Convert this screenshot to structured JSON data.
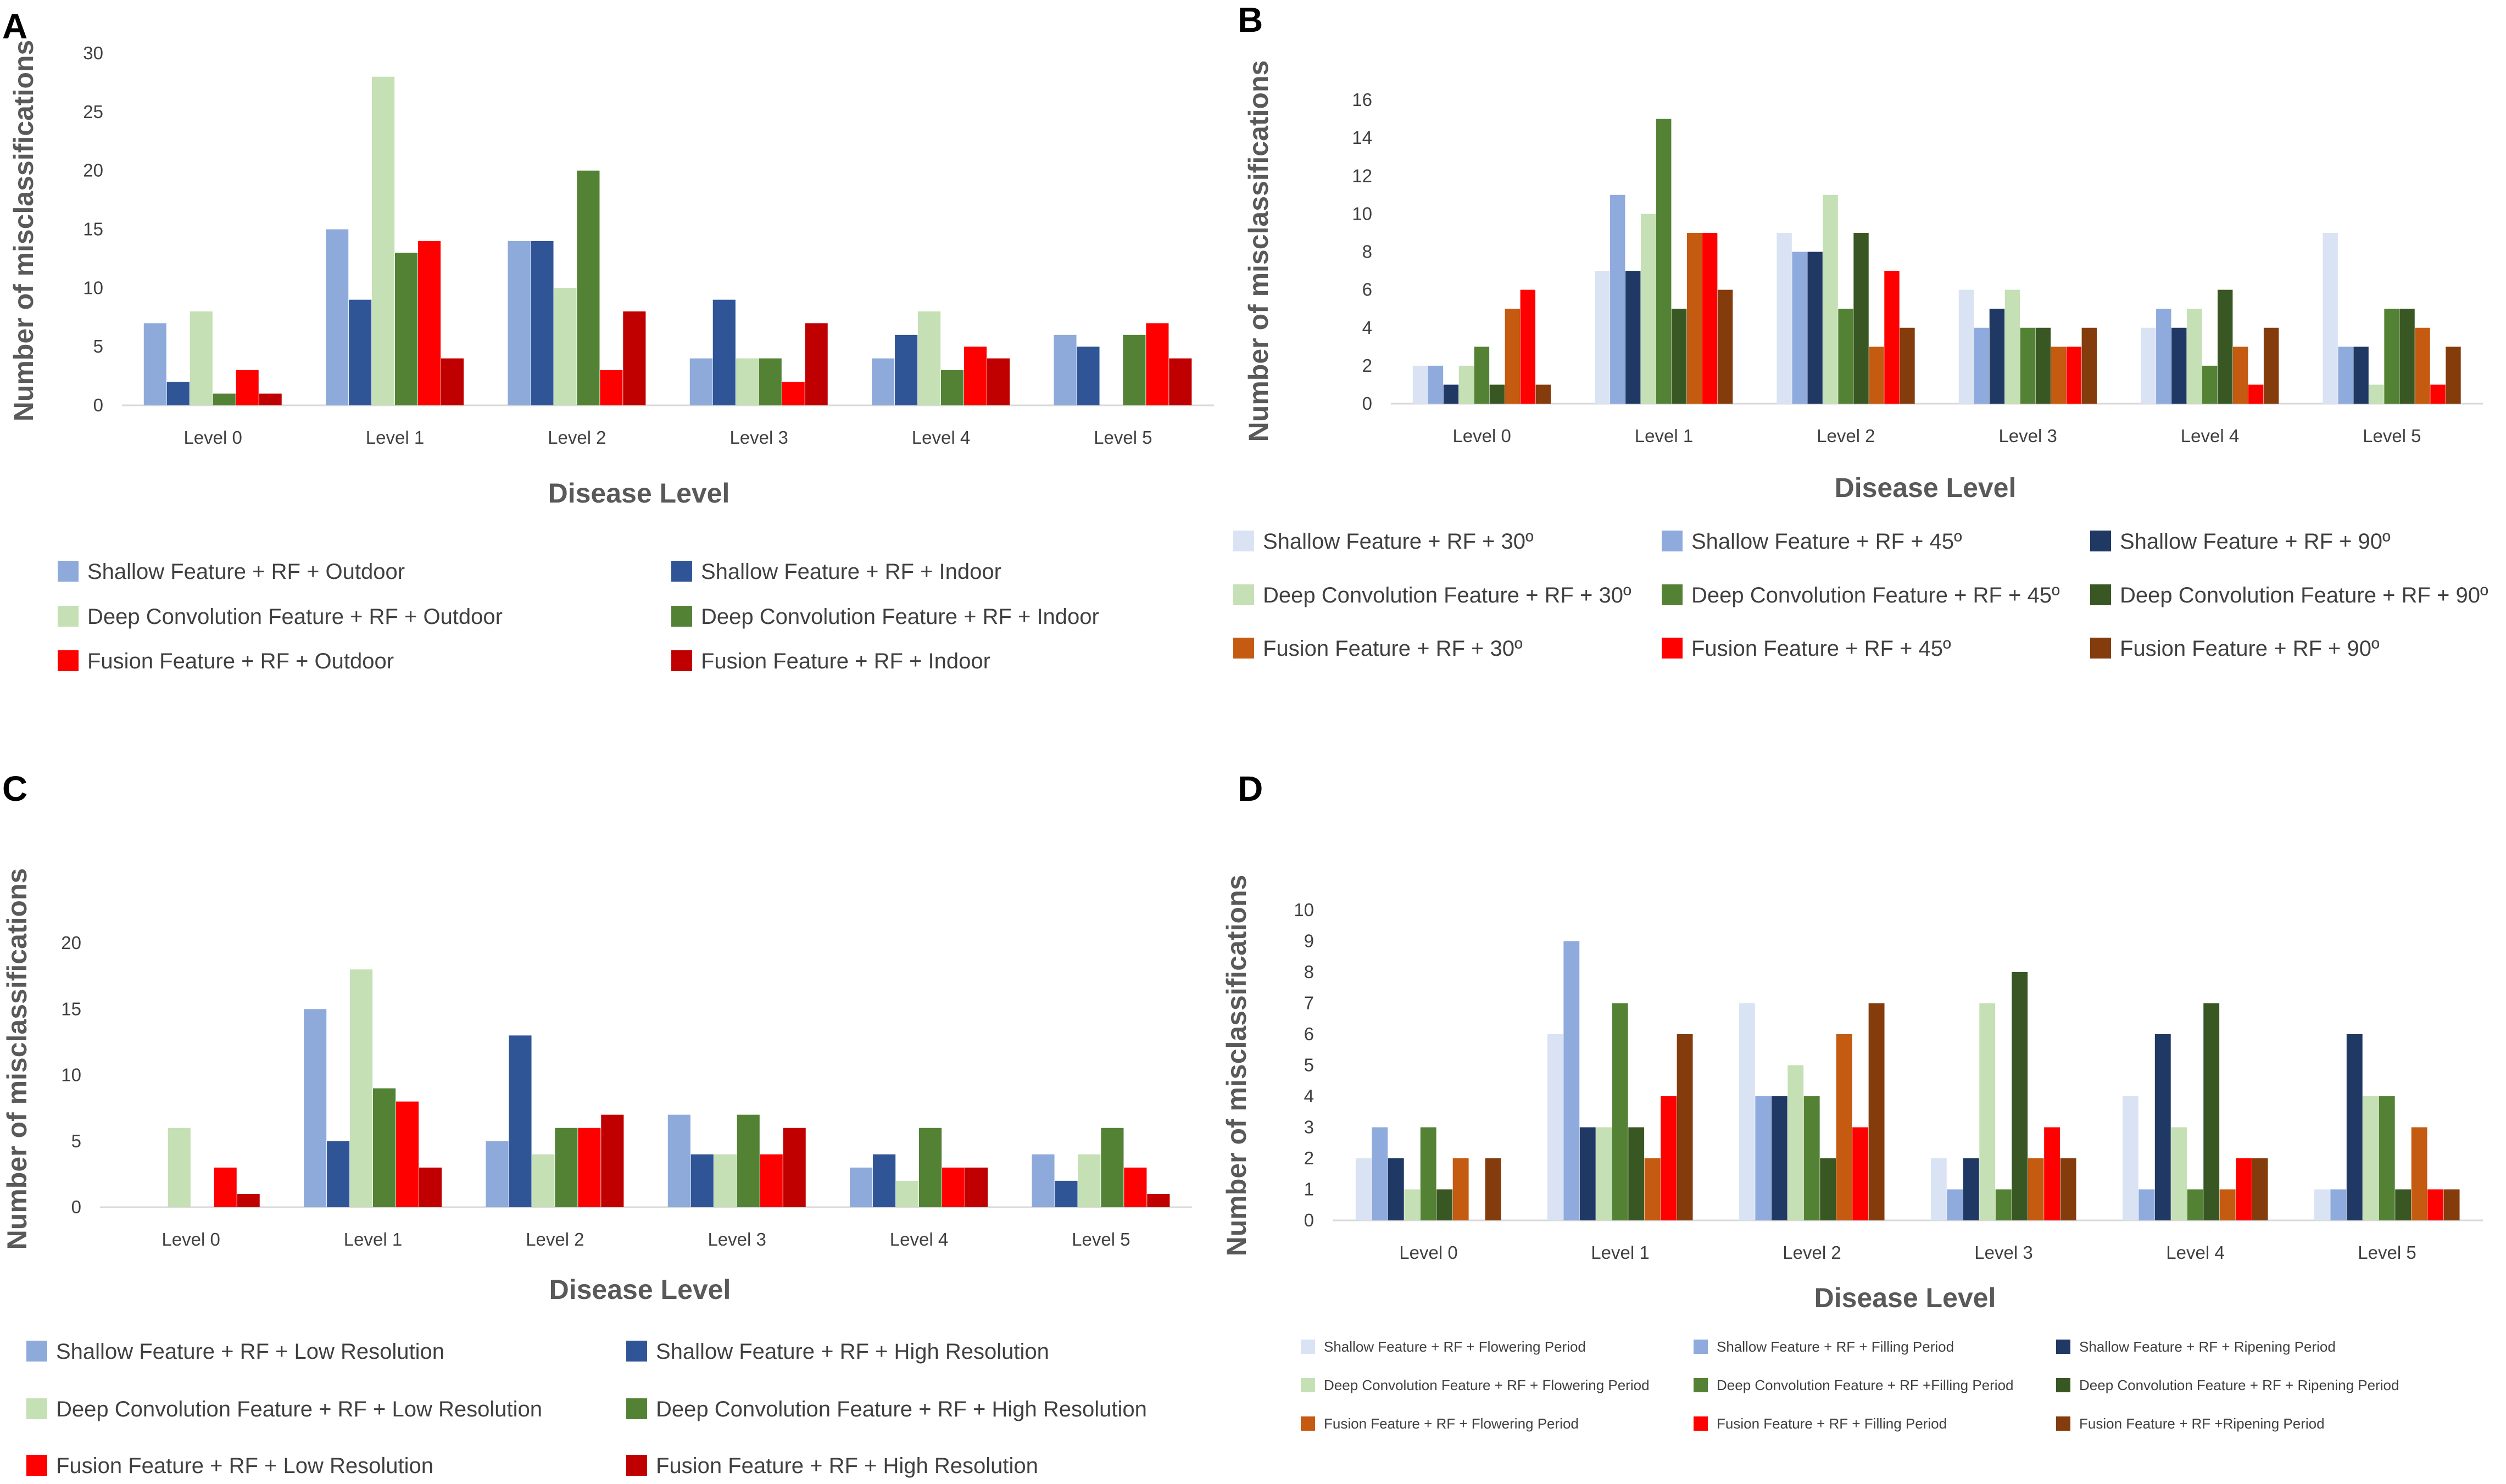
{
  "chart_data": [
    {
      "panel": "A",
      "type": "bar",
      "title": "",
      "xlabel": "Disease Level",
      "ylabel": "Number of misclassifications",
      "ylim": [
        0,
        30
      ],
      "yticks": [
        0,
        5,
        10,
        15,
        20,
        25,
        30
      ],
      "grid": false,
      "legend": "bottom",
      "categories": [
        "Level 0",
        "Level 1",
        "Level 2",
        "Level 3",
        "Level 4",
        "Level 5"
      ],
      "series": [
        {
          "name": "Shallow Feature + RF + Outdoor",
          "color": "#8eaadb",
          "values": [
            7,
            15,
            14,
            4,
            4,
            6
          ]
        },
        {
          "name": "Shallow Feature + RF + Indoor",
          "color": "#2f5597",
          "values": [
            2,
            9,
            14,
            9,
            6,
            5
          ]
        },
        {
          "name": "Deep Convolution Feature + RF + Outdoor",
          "color": "#c5e0b4",
          "values": [
            8,
            28,
            10,
            4,
            8,
            0
          ]
        },
        {
          "name": "Deep Convolution Feature + RF + Indoor",
          "color": "#548235",
          "values": [
            1,
            13,
            20,
            4,
            3,
            6
          ]
        },
        {
          "name": "Fusion Feature + RF + Outdoor",
          "color": "#ff0000",
          "values": [
            3,
            14,
            3,
            2,
            5,
            7
          ]
        },
        {
          "name": "Fusion Feature + RF + Indoor",
          "color": "#c00000",
          "values": [
            1,
            4,
            8,
            7,
            4,
            4
          ]
        }
      ]
    },
    {
      "panel": "B",
      "type": "bar",
      "title": "",
      "xlabel": "Disease Level",
      "ylabel": "Number of misclassifications",
      "ylim": [
        0,
        16
      ],
      "yticks": [
        0,
        2,
        4,
        6,
        8,
        10,
        12,
        14,
        16
      ],
      "grid": false,
      "legend": "bottom",
      "categories": [
        "Level 0",
        "Level 1",
        "Level 2",
        "Level 3",
        "Level 4",
        "Level 5"
      ],
      "series": [
        {
          "name": "Shallow Feature + RF + 30º",
          "color": "#dae3f3",
          "values": [
            2,
            7,
            9,
            6,
            4,
            9
          ]
        },
        {
          "name": "Shallow Feature + RF + 45º",
          "color": "#8faadc",
          "values": [
            2,
            11,
            8,
            4,
            5,
            3
          ]
        },
        {
          "name": "Shallow Feature + RF + 90º",
          "color": "#203864",
          "values": [
            1,
            7,
            8,
            5,
            4,
            3
          ]
        },
        {
          "name": "Deep Convolution Feature + RF + 30º",
          "color": "#c5e0b4",
          "values": [
            2,
            10,
            11,
            6,
            5,
            1
          ]
        },
        {
          "name": "Deep Convolution Feature + RF + 45º",
          "color": "#548235",
          "values": [
            3,
            15,
            5,
            4,
            2,
            5
          ]
        },
        {
          "name": "Deep Convolution Feature + RF + 90º",
          "color": "#385723",
          "values": [
            1,
            5,
            9,
            4,
            6,
            5
          ]
        },
        {
          "name": "Fusion Feature + RF + 30º",
          "color": "#c55a11",
          "values": [
            5,
            9,
            3,
            3,
            3,
            4
          ]
        },
        {
          "name": "Fusion Feature + RF + 45º",
          "color": "#ff0000",
          "values": [
            6,
            9,
            7,
            3,
            1,
            1
          ]
        },
        {
          "name": "Fusion Feature + RF + 90º",
          "color": "#843c0c",
          "values": [
            1,
            6,
            4,
            4,
            4,
            3
          ]
        }
      ]
    },
    {
      "panel": "C",
      "type": "bar",
      "title": "",
      "xlabel": "Disease Level",
      "ylabel": "Number of misclassifications",
      "ylim": [
        0,
        20
      ],
      "yticks": [
        0,
        5,
        10,
        15,
        20
      ],
      "grid": false,
      "legend": "bottom",
      "categories": [
        "Level 0",
        "Level 1",
        "Level 2",
        "Level 3",
        "Level 4",
        "Level 5"
      ],
      "series": [
        {
          "name": "Shallow Feature + RF + Low Resolution",
          "color": "#8eaadb",
          "values": [
            0,
            15,
            5,
            7,
            3,
            4
          ]
        },
        {
          "name": "Shallow Feature + RF + High Resolution",
          "color": "#2f5597",
          "values": [
            0,
            5,
            13,
            4,
            4,
            2
          ]
        },
        {
          "name": "Deep Convolution Feature + RF + Low Resolution",
          "color": "#c5e0b4",
          "values": [
            6,
            18,
            4,
            4,
            2,
            4
          ]
        },
        {
          "name": "Deep Convolution Feature + RF + High Resolution",
          "color": "#548235",
          "values": [
            0,
            9,
            6,
            7,
            6,
            6
          ]
        },
        {
          "name": "Fusion Feature + RF + Low Resolution",
          "color": "#ff0000",
          "values": [
            3,
            8,
            6,
            4,
            3,
            3
          ]
        },
        {
          "name": "Fusion Feature + RF + High Resolution",
          "color": "#c00000",
          "values": [
            1,
            3,
            7,
            6,
            3,
            1
          ]
        }
      ]
    },
    {
      "panel": "D",
      "type": "bar",
      "title": "",
      "xlabel": "Disease Level",
      "ylabel": "Number of misclassifications",
      "ylim": [
        0,
        10
      ],
      "yticks": [
        0,
        1,
        2,
        3,
        4,
        5,
        6,
        7,
        8,
        9,
        10
      ],
      "grid": false,
      "legend": "bottom",
      "categories": [
        "Level 0",
        "Level 1",
        "Level 2",
        "Level 3",
        "Level 4",
        "Level 5"
      ],
      "series": [
        {
          "name": "Shallow Feature + RF + Flowering Period",
          "color": "#dae3f3",
          "values": [
            2,
            6,
            7,
            2,
            4,
            1
          ]
        },
        {
          "name": "Shallow Feature + RF + Filling Period",
          "color": "#8faadc",
          "values": [
            3,
            9,
            4,
            1,
            1,
            1
          ]
        },
        {
          "name": "Shallow Feature + RF + Ripening Period",
          "color": "#203864",
          "values": [
            2,
            3,
            4,
            2,
            6,
            6
          ]
        },
        {
          "name": "Deep Convolution Feature + RF + Flowering Period",
          "color": "#c5e0b4",
          "values": [
            1,
            3,
            5,
            7,
            3,
            4
          ]
        },
        {
          "name": "Deep Convolution Feature + RF +Filling Period",
          "color": "#548235",
          "values": [
            3,
            7,
            4,
            1,
            1,
            4
          ]
        },
        {
          "name": "Deep Convolution Feature + RF + Ripening Period",
          "color": "#385723",
          "values": [
            1,
            3,
            2,
            8,
            7,
            1
          ]
        },
        {
          "name": "Fusion Feature + RF + Flowering Period",
          "color": "#c55a11",
          "values": [
            2,
            2,
            6,
            2,
            1,
            3
          ]
        },
        {
          "name": "Fusion Feature + RF + Filling Period",
          "color": "#ff0000",
          "values": [
            0,
            4,
            3,
            3,
            2,
            1
          ]
        },
        {
          "name": "Fusion Feature + RF +Ripening Period",
          "color": "#843c0c",
          "values": [
            2,
            6,
            7,
            2,
            2,
            1
          ]
        }
      ]
    }
  ]
}
